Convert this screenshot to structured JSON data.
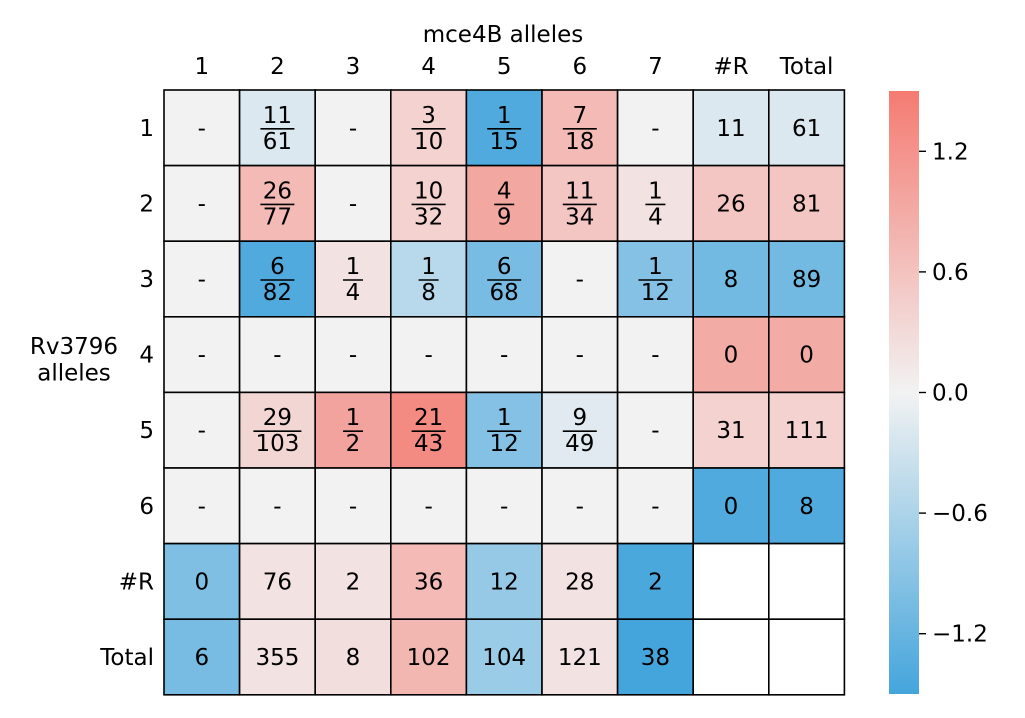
{
  "chart_data": {
    "type": "heatmap",
    "title": "mce4B alleles",
    "ylabel": "Rv3796\nalleles",
    "col_labels": [
      "1",
      "2",
      "3",
      "4",
      "5",
      "6",
      "7",
      "#R",
      "Total"
    ],
    "row_labels": [
      "1",
      "2",
      "3",
      "4",
      "5",
      "6",
      "#R",
      "Total"
    ],
    "cells": [
      [
        "-",
        "11/61",
        "-",
        "3/10",
        "1/15",
        "7/18",
        "-",
        "11",
        "61"
      ],
      [
        "-",
        "26/77",
        "-",
        "10/32",
        "4/9",
        "11/34",
        "1/4",
        "26",
        "81"
      ],
      [
        "-",
        "6/82",
        "1/4",
        "1/8",
        "6/68",
        "-",
        "1/12",
        "8",
        "89"
      ],
      [
        "-",
        "-",
        "-",
        "-",
        "-",
        "-",
        "-",
        "0",
        "0"
      ],
      [
        "-",
        "29/103",
        "1/2",
        "21/43",
        "1/12",
        "9/49",
        "-",
        "31",
        "111"
      ],
      [
        "-",
        "-",
        "-",
        "-",
        "-",
        "-",
        "-",
        "0",
        "8"
      ],
      [
        "0",
        "76",
        "2",
        "36",
        "12",
        "28",
        "2",
        "",
        ""
      ],
      [
        "6",
        "355",
        "8",
        "102",
        "104",
        "121",
        "38",
        "",
        ""
      ]
    ],
    "values": [
      [
        0.0,
        -0.2,
        0.0,
        0.4,
        -1.4,
        0.7,
        0.0,
        -0.2,
        -0.2
      ],
      [
        0.0,
        0.7,
        0.0,
        0.4,
        0.95,
        0.55,
        0.2,
        0.55,
        0.55
      ],
      [
        0.0,
        -1.4,
        0.2,
        -0.5,
        -1.05,
        0.0,
        -0.95,
        -1.1,
        -1.1
      ],
      [
        0.0,
        0.0,
        0.0,
        0.0,
        0.0,
        0.0,
        0.0,
        0.9,
        0.9
      ],
      [
        0.0,
        0.35,
        1.0,
        1.3,
        -0.95,
        -0.15,
        0.0,
        0.4,
        0.4
      ],
      [
        0.0,
        0.0,
        0.0,
        0.0,
        0.0,
        0.0,
        0.0,
        -1.4,
        -1.4
      ],
      [
        -1.0,
        0.2,
        0.2,
        0.7,
        -0.8,
        0.2,
        -1.45,
        null,
        null
      ],
      [
        -1.05,
        0.2,
        0.25,
        0.75,
        -0.75,
        0.2,
        -1.5,
        null,
        null
      ]
    ],
    "colorbar": {
      "ticks": [
        1.2,
        0.6,
        0.0,
        -0.6,
        -1.2
      ],
      "tick_labels": [
        "1.2",
        "0.6",
        "0.0",
        "−0.6",
        "−1.2"
      ],
      "range": [
        -1.5,
        1.5
      ]
    },
    "colors": {
      "positive": "#f47b72",
      "neutral": "#f2f2f2",
      "negative": "#44a5dc",
      "empty": "#ffffff",
      "grid": "#000000"
    }
  }
}
